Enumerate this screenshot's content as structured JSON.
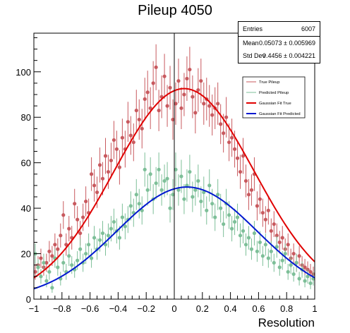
{
  "chart_data": {
    "type": "scatter",
    "title": "Pileup 4050",
    "xlabel": "Resolution",
    "ylabel": "",
    "xlim": [
      -1,
      1
    ],
    "ylim": [
      0,
      117
    ],
    "x_ticks": [
      "-1",
      "-0.8",
      "-0.6",
      "-0.4",
      "-0.2",
      "0",
      "0.2",
      "0.4",
      "0.6",
      "0.8",
      "1"
    ],
    "y_ticks": [
      "0",
      "20",
      "40",
      "60",
      "80",
      "100"
    ],
    "legend_position": "top-right",
    "stats": {
      "entries_label": "Entries",
      "entries_value": "6007",
      "mean_label": "Mean",
      "mean_value": "0.05073 ± 0.005969",
      "std_label": "Std Dev",
      "std_value": "0.4456 ± 0.004221"
    },
    "series": [
      {
        "name": "True Pileup",
        "kind": "points",
        "color": "#c8595e",
        "x": [
          -0.99,
          -0.97,
          -0.95,
          -0.93,
          -0.91,
          -0.89,
          -0.87,
          -0.85,
          -0.83,
          -0.81,
          -0.79,
          -0.77,
          -0.75,
          -0.73,
          -0.71,
          -0.69,
          -0.67,
          -0.65,
          -0.63,
          -0.61,
          -0.59,
          -0.57,
          -0.55,
          -0.53,
          -0.51,
          -0.49,
          -0.47,
          -0.45,
          -0.43,
          -0.41,
          -0.39,
          -0.37,
          -0.35,
          -0.33,
          -0.31,
          -0.29,
          -0.27,
          -0.25,
          -0.23,
          -0.21,
          -0.19,
          -0.17,
          -0.15,
          -0.13,
          -0.11,
          -0.09,
          -0.07,
          -0.05,
          -0.03,
          -0.01,
          0.01,
          0.03,
          0.05,
          0.07,
          0.09,
          0.11,
          0.13,
          0.15,
          0.17,
          0.19,
          0.21,
          0.23,
          0.25,
          0.27,
          0.29,
          0.31,
          0.33,
          0.35,
          0.37,
          0.39,
          0.41,
          0.43,
          0.45,
          0.47,
          0.49,
          0.51,
          0.53,
          0.55,
          0.57,
          0.59,
          0.61,
          0.63,
          0.65,
          0.67,
          0.69,
          0.71,
          0.73,
          0.75,
          0.77,
          0.79,
          0.81,
          0.83,
          0.85,
          0.87,
          0.89,
          0.91,
          0.93,
          0.95,
          0.97,
          0.99
        ],
        "y": [
          12,
          15,
          18,
          14,
          16,
          21,
          19,
          24,
          22,
          28,
          37,
          24,
          31,
          27,
          42,
          35,
          29,
          36,
          43,
          38,
          55,
          50,
          47,
          59,
          53,
          63,
          56,
          61,
          70,
          66,
          58,
          71,
          66,
          78,
          72,
          69,
          83,
          79,
          75,
          88,
          91,
          84,
          95,
          102,
          83,
          89,
          98,
          85,
          93,
          79,
          86,
          96,
          84,
          90,
          97,
          101,
          89,
          82,
          92,
          96,
          86,
          88,
          85,
          81,
          84,
          86,
          77,
          73,
          80,
          69,
          71,
          66,
          62,
          56,
          63,
          52,
          46,
          48,
          55,
          41,
          44,
          38,
          35,
          39,
          30,
          33,
          28,
          25,
          27,
          22,
          24,
          18,
          20,
          16,
          19,
          15,
          14,
          13,
          12,
          11
        ],
        "err": [
          3.5,
          3.9,
          4.2,
          3.7,
          4.0,
          4.6,
          4.4,
          4.9,
          4.7,
          5.3,
          6.1,
          4.9,
          5.6,
          5.2,
          6.5,
          5.9,
          5.4,
          6.0,
          6.6,
          6.2,
          7.4,
          7.1,
          6.9,
          7.7,
          7.3,
          7.9,
          7.5,
          7.8,
          8.4,
          8.1,
          7.6,
          8.4,
          8.1,
          8.8,
          8.5,
          8.3,
          9.1,
          8.9,
          8.7,
          9.4,
          9.5,
          9.2,
          9.7,
          10.1,
          9.1,
          9.4,
          9.9,
          9.2,
          9.6,
          8.9,
          9.3,
          9.8,
          9.2,
          9.5,
          9.8,
          10.0,
          9.4,
          9.1,
          9.6,
          9.8,
          9.3,
          9.4,
          9.2,
          9.0,
          9.2,
          9.3,
          8.8,
          8.5,
          8.9,
          8.3,
          8.4,
          8.1,
          7.9,
          7.5,
          7.9,
          7.2,
          6.8,
          6.9,
          7.4,
          6.4,
          6.6,
          6.2,
          5.9,
          6.2,
          5.5,
          5.7,
          5.3,
          5.0,
          5.2,
          4.7,
          4.9,
          4.2,
          4.5,
          4.0,
          4.4,
          3.9,
          3.7,
          3.6,
          3.5,
          3.3
        ]
      },
      {
        "name": "Predicted Pileup",
        "kind": "points",
        "color": "#7dbf98",
        "x": [
          -0.99,
          -0.97,
          -0.95,
          -0.93,
          -0.91,
          -0.89,
          -0.87,
          -0.85,
          -0.83,
          -0.81,
          -0.79,
          -0.77,
          -0.75,
          -0.73,
          -0.71,
          -0.69,
          -0.67,
          -0.65,
          -0.63,
          -0.61,
          -0.59,
          -0.57,
          -0.55,
          -0.53,
          -0.51,
          -0.49,
          -0.47,
          -0.45,
          -0.43,
          -0.41,
          -0.39,
          -0.37,
          -0.35,
          -0.33,
          -0.31,
          -0.29,
          -0.27,
          -0.25,
          -0.23,
          -0.21,
          -0.19,
          -0.17,
          -0.15,
          -0.13,
          -0.11,
          -0.09,
          -0.07,
          -0.05,
          -0.03,
          -0.01,
          0.01,
          0.03,
          0.05,
          0.07,
          0.09,
          0.11,
          0.13,
          0.15,
          0.17,
          0.19,
          0.21,
          0.23,
          0.25,
          0.27,
          0.29,
          0.31,
          0.33,
          0.35,
          0.37,
          0.39,
          0.41,
          0.43,
          0.45,
          0.47,
          0.49,
          0.51,
          0.53,
          0.55,
          0.57,
          0.59,
          0.61,
          0.63,
          0.65,
          0.67,
          0.69,
          0.71,
          0.73,
          0.75,
          0.77,
          0.79,
          0.81,
          0.83,
          0.85,
          0.87,
          0.89,
          0.91,
          0.93,
          0.95,
          0.97,
          0.99
        ],
        "y": [
          20,
          14,
          10,
          16,
          8,
          12,
          5,
          18,
          14,
          9,
          16,
          12,
          19,
          15,
          13,
          17,
          22,
          16,
          20,
          24,
          18,
          27,
          22,
          26,
          29,
          24,
          28,
          31,
          34,
          30,
          27,
          36,
          32,
          35,
          41,
          38,
          46,
          42,
          39,
          57,
          48,
          55,
          44,
          51,
          57,
          48,
          52,
          53,
          40,
          46,
          57,
          48,
          54,
          44,
          50,
          56,
          45,
          48,
          52,
          43,
          47,
          39,
          50,
          42,
          36,
          46,
          40,
          33,
          42,
          37,
          31,
          34,
          36,
          28,
          30,
          24,
          27,
          22,
          29,
          21,
          25,
          19,
          24,
          18,
          21,
          16,
          23,
          14,
          17,
          20,
          12,
          15,
          11,
          16,
          9,
          13,
          8,
          10,
          7,
          9
        ],
        "err": [
          4.5,
          3.7,
          3.2,
          4.0,
          2.8,
          3.5,
          2.2,
          4.2,
          3.7,
          3.0,
          4.0,
          3.5,
          4.4,
          3.9,
          3.6,
          4.1,
          4.7,
          4.0,
          4.5,
          4.9,
          4.2,
          5.2,
          4.7,
          5.1,
          5.4,
          4.9,
          5.3,
          5.6,
          5.8,
          5.5,
          5.2,
          6.0,
          5.7,
          5.9,
          6.4,
          6.2,
          6.8,
          6.5,
          6.2,
          7.5,
          6.9,
          7.4,
          6.6,
          7.1,
          7.5,
          6.9,
          7.2,
          7.3,
          6.3,
          6.8,
          7.5,
          6.9,
          7.3,
          6.6,
          7.1,
          7.5,
          6.7,
          6.9,
          7.2,
          6.6,
          6.9,
          6.2,
          7.1,
          6.5,
          6.0,
          6.8,
          6.3,
          5.7,
          6.5,
          6.1,
          5.6,
          5.8,
          6.0,
          5.3,
          5.5,
          4.9,
          5.2,
          4.7,
          5.4,
          4.6,
          5.0,
          4.4,
          4.9,
          4.2,
          4.6,
          4.0,
          4.8,
          3.7,
          4.1,
          4.5,
          3.5,
          3.9,
          3.3,
          4.0,
          3.0,
          3.6,
          2.8,
          3.2,
          2.6,
          3.0
        ]
      },
      {
        "name": "Gaussian Fit True",
        "kind": "curve",
        "color": "#e00000",
        "amplitude": 92.6,
        "mean": 0.07,
        "sigma": 0.5
      },
      {
        "name": "Gaussian Fit Predicted",
        "kind": "curve",
        "color": "#0018d0",
        "amplitude": 49.3,
        "mean": 0.09,
        "sigma": 0.5
      }
    ]
  }
}
